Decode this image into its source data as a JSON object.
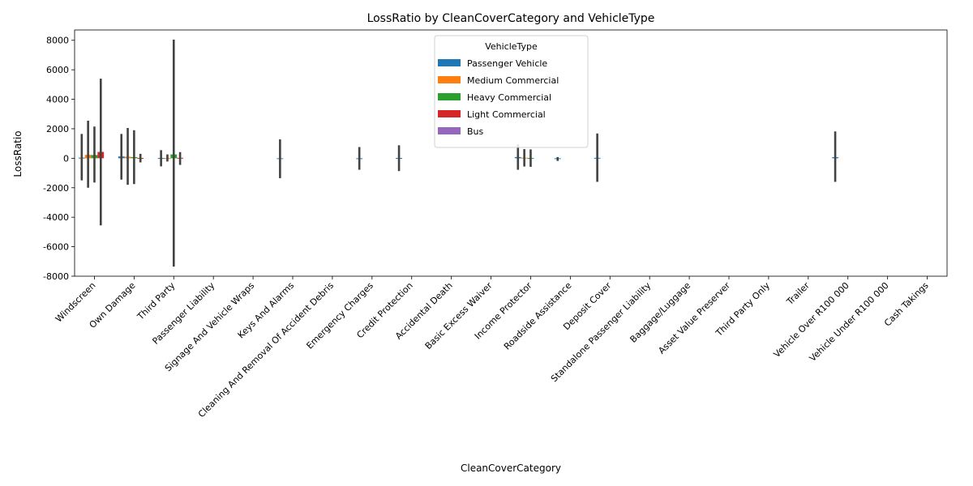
{
  "chart_data": {
    "type": "bar",
    "title": "LossRatio by CleanCoverCategory and VehicleType",
    "xlabel": "CleanCoverCategory",
    "ylabel": "LossRatio",
    "ylim": [
      -8000,
      8700
    ],
    "yticks": [
      -8000,
      -6000,
      -4000,
      -2000,
      0,
      2000,
      4000,
      6000,
      8000
    ],
    "legend": {
      "title": "VehicleType",
      "placement": "top-center"
    },
    "categories": [
      "Windscreen",
      "Own Damage",
      "Third Party",
      "Passenger Liability",
      "Signage And Vehicle Wraps",
      "Keys And Alarms",
      "Cleaning And Removal Of Accident Debris",
      "Emergency Charges",
      "Credit Protection",
      "Accidental Death",
      "Basic Excess Waiver",
      "Income Protector",
      "Roadside Assistance",
      "Deposit Cover",
      "Standalone Passenger Liability",
      "Baggage/Luggage",
      "Asset Value Preserver",
      "Third Party Only",
      "Trailer",
      "Vehicle Over R100 000",
      "Vehicle Under R100 000",
      "Cash Takings"
    ],
    "series": [
      {
        "name": "Passenger Vehicle",
        "color": "#1f77b4",
        "values": [
          40,
          120,
          20,
          null,
          null,
          -30,
          null,
          -20,
          20,
          null,
          null,
          80,
          -50,
          30,
          null,
          null,
          null,
          null,
          null,
          70,
          null,
          null
        ],
        "errors": [
          [
            -1500,
            1650
          ],
          [
            -1450,
            1650
          ],
          [
            -550,
            550
          ],
          null,
          null,
          [
            -1350,
            1280
          ],
          null,
          [
            -780,
            760
          ],
          [
            -870,
            880
          ],
          null,
          null,
          [
            -780,
            950
          ],
          [
            -180,
            80
          ],
          [
            -1600,
            1680
          ],
          null,
          null,
          null,
          null,
          null,
          [
            -1600,
            1820
          ],
          null,
          null
        ]
      },
      {
        "name": "Medium Commercial",
        "color": "#ff7f0e",
        "values": [
          230,
          100,
          10,
          null,
          null,
          null,
          null,
          null,
          null,
          null,
          null,
          40,
          null,
          null,
          null,
          null,
          null,
          null,
          null,
          null,
          null,
          null
        ],
        "errors": [
          [
            -2000,
            2550
          ],
          [
            -1800,
            2050
          ],
          [
            -220,
            260
          ],
          null,
          null,
          null,
          null,
          null,
          null,
          null,
          null,
          [
            -560,
            620
          ],
          null,
          null,
          null,
          null,
          null,
          null,
          null,
          null,
          null,
          null
        ]
      },
      {
        "name": "Heavy Commercial",
        "color": "#2ca02c",
        "values": [
          220,
          80,
          260,
          null,
          null,
          null,
          null,
          null,
          null,
          null,
          null,
          20,
          null,
          null,
          null,
          null,
          null,
          null,
          null,
          null,
          null,
          null
        ],
        "errors": [
          [
            -1650,
            2150
          ],
          [
            -1750,
            1900
          ],
          [
            -7350,
            8050
          ],
          null,
          null,
          null,
          null,
          null,
          null,
          null,
          null,
          [
            -580,
            600
          ],
          null,
          null,
          null,
          null,
          null,
          null,
          null,
          null,
          null,
          null
        ]
      },
      {
        "name": "Light Commercial",
        "color": "#d62728",
        "values": [
          430,
          20,
          30,
          null,
          null,
          null,
          null,
          null,
          null,
          null,
          null,
          null,
          null,
          null,
          null,
          null,
          null,
          null,
          null,
          null,
          null,
          null
        ],
        "errors": [
          [
            -4550,
            5400
          ],
          [
            -280,
            300
          ],
          [
            -450,
            420
          ],
          null,
          null,
          null,
          null,
          null,
          null,
          null,
          null,
          null,
          null,
          null,
          null,
          null,
          null,
          null,
          null,
          null,
          null,
          null
        ]
      },
      {
        "name": "Bus",
        "color": "#9467bd",
        "values": [
          null,
          null,
          null,
          null,
          null,
          null,
          null,
          null,
          null,
          null,
          null,
          null,
          null,
          null,
          null,
          null,
          null,
          null,
          null,
          null,
          null,
          null
        ],
        "errors": [
          null,
          null,
          null,
          null,
          null,
          null,
          null,
          null,
          null,
          null,
          null,
          null,
          null,
          null,
          null,
          null,
          null,
          null,
          null,
          null,
          null,
          null
        ]
      }
    ]
  }
}
